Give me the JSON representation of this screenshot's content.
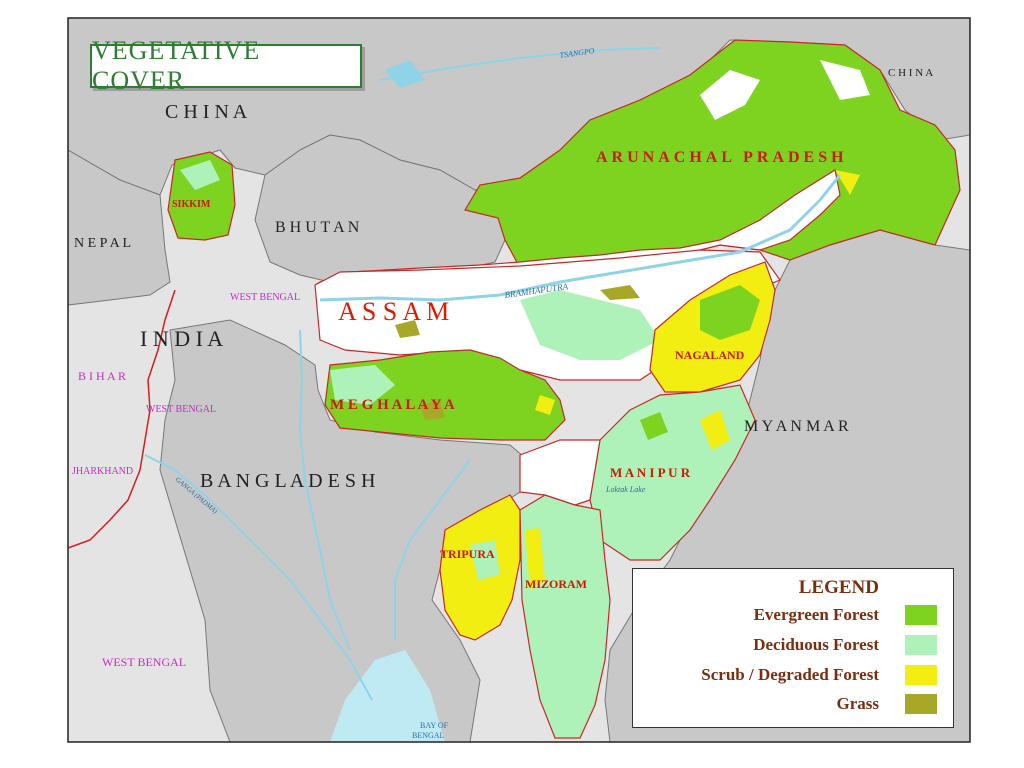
{
  "title": "VEGETATIVE COVER",
  "colors": {
    "evergreen": "#7ed321",
    "deciduous": "#aef2b9",
    "scrub": "#f2ee12",
    "grass": "#a8a828",
    "foreign": "#c8c8c8",
    "india_other": "#e4e4e4",
    "water": "#bfeaf4",
    "state_boundary": "#d21f1f",
    "region_label": "#cc1a00",
    "legend_text": "#7a2e10",
    "title": "#2e7d32"
  },
  "labels": {
    "china_big": "C H I N A",
    "china_ne": "C H I N A",
    "bhutan": "B H U T A N",
    "nepal": "N E P A L",
    "india": "I N D I A",
    "myanmar": "M Y A N M A R",
    "bangladesh": "B A N G L A D E S H",
    "assam": "A S S A M",
    "arunachal": "ARUNACHAL PRADESH",
    "meghalaya": "M E G H A L A Y A",
    "nagaland": "NAGALAND",
    "manipur": "M A N I P U R",
    "tripura": "TRIPURA",
    "mizoram": "MIZORAM",
    "sikkim": "SIKKIM",
    "bihar": "B I H A R",
    "west_bengal_1": "WEST BENGAL",
    "west_bengal_2": "WEST BENGAL",
    "west_bengal_3": "WEST BENGAL",
    "jharkhand": "JHARKHAND",
    "bramhaputra": "BRAMHAPUTRA",
    "tsangpo": "TSANGPO",
    "bay_of_bengal_1": "BAY OF",
    "bay_of_bengal_2": "BENGAL",
    "loktak": "Loktak Lake",
    "ganga_padma": "GANGA (PADMA)"
  },
  "legend": {
    "heading": "LEGEND",
    "items": [
      {
        "label": "Evergreen Forest",
        "color": "#7ed321"
      },
      {
        "label": "Deciduous Forest",
        "color": "#aef2b9"
      },
      {
        "label": "Scrub / Degraded Forest",
        "color": "#f2ee12"
      },
      {
        "label": "Grass",
        "color": "#a8a828"
      }
    ]
  }
}
